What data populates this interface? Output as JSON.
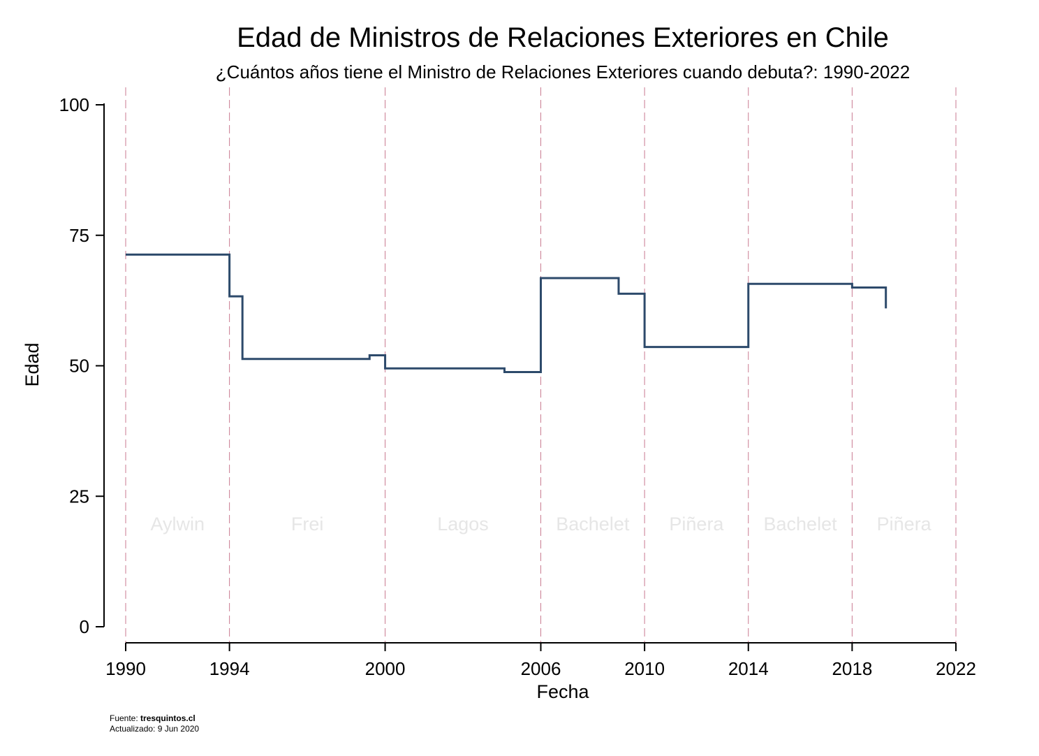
{
  "chart_data": {
    "type": "line",
    "step": true,
    "title": "Edad de Ministros de Relaciones Exteriores en Chile",
    "subtitle": "¿Cuántos años tiene el Ministro de Relaciones Exteriores cuando debuta?: 1990-2022",
    "xlabel": "Fecha",
    "ylabel": "Edad",
    "xlim": [
      1990,
      2022
    ],
    "ylim": [
      0,
      100
    ],
    "xticks": [
      1990,
      1994,
      2000,
      2006,
      2010,
      2014,
      2018,
      2022
    ],
    "yticks": [
      0,
      25,
      50,
      75,
      100
    ],
    "xtick_labels": [
      "1990",
      "1994",
      "2000",
      "2006",
      "2010",
      "2014",
      "2018",
      "2022"
    ],
    "ytick_labels": [
      "0",
      "25",
      "50",
      "75",
      "100"
    ],
    "grid": false,
    "term_boundaries": [
      1990,
      1994,
      2000,
      2006,
      2010,
      2014,
      2018,
      2022
    ],
    "terms": [
      {
        "label": "Aylwin",
        "start": 1990,
        "end": 1994
      },
      {
        "label": "Frei",
        "start": 1994,
        "end": 2000
      },
      {
        "label": "Lagos",
        "start": 2000,
        "end": 2006
      },
      {
        "label": "Bachelet",
        "start": 2006,
        "end": 2010
      },
      {
        "label": "Piñera",
        "start": 2010,
        "end": 2014
      },
      {
        "label": "Bachelet",
        "start": 2014,
        "end": 2018
      },
      {
        "label": "Piñera",
        "start": 2018,
        "end": 2022
      }
    ],
    "series": [
      {
        "color": "#2d4a6b",
        "x": [
          1990.0,
          1994.0,
          1994.5,
          1999.4,
          2000.0,
          2004.6,
          2006.0,
          2009.0,
          2010.0,
          2014.0,
          2018.0,
          2019.3
        ],
        "values": [
          71.3,
          63.3,
          51.3,
          52.0,
          49.5,
          48.8,
          66.8,
          63.8,
          53.6,
          65.7,
          65.0,
          61.0
        ]
      }
    ],
    "source_prefix": "Fuente: ",
    "source_name": "tresquintos.cl",
    "updated": "Actualizado:  9 Jun 2020"
  },
  "colors": {
    "line": "#2d4a6b",
    "boundary": "#c97a90",
    "era_label": "#e6e6e6"
  }
}
